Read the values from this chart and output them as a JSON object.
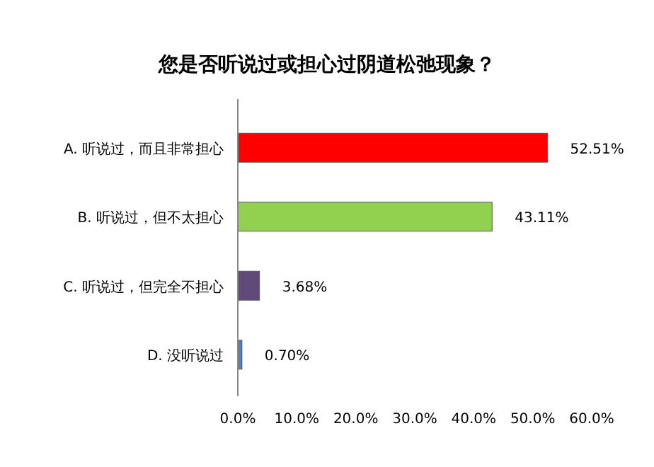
{
  "chart_data": {
    "type": "bar",
    "orientation": "horizontal",
    "title": "您是否听说过或担心过阴道松弛现象？",
    "categories": [
      "A. 听说过，而且非常担心",
      "B. 听说过，但不太担心",
      "C. 听说过，但完全不担心",
      "D. 没听说过"
    ],
    "values": [
      52.51,
      43.11,
      3.68,
      0.7
    ],
    "colors": [
      "#ff0000",
      "#92d050",
      "#604a7b",
      "#4f81bd"
    ],
    "value_labels": [
      "52.51%",
      "43.11%",
      "3.68%",
      "0.70%"
    ],
    "xlim": [
      0,
      60
    ],
    "xticks": [
      {
        "value": 0,
        "label": "0.0%"
      },
      {
        "value": 10,
        "label": "10.0%"
      },
      {
        "value": 20,
        "label": "20.0%"
      },
      {
        "value": 30,
        "label": "30.0%"
      },
      {
        "value": 40,
        "label": "40.0%"
      },
      {
        "value": 50,
        "label": "50.0%"
      },
      {
        "value": 60,
        "label": "60.0%"
      }
    ]
  }
}
